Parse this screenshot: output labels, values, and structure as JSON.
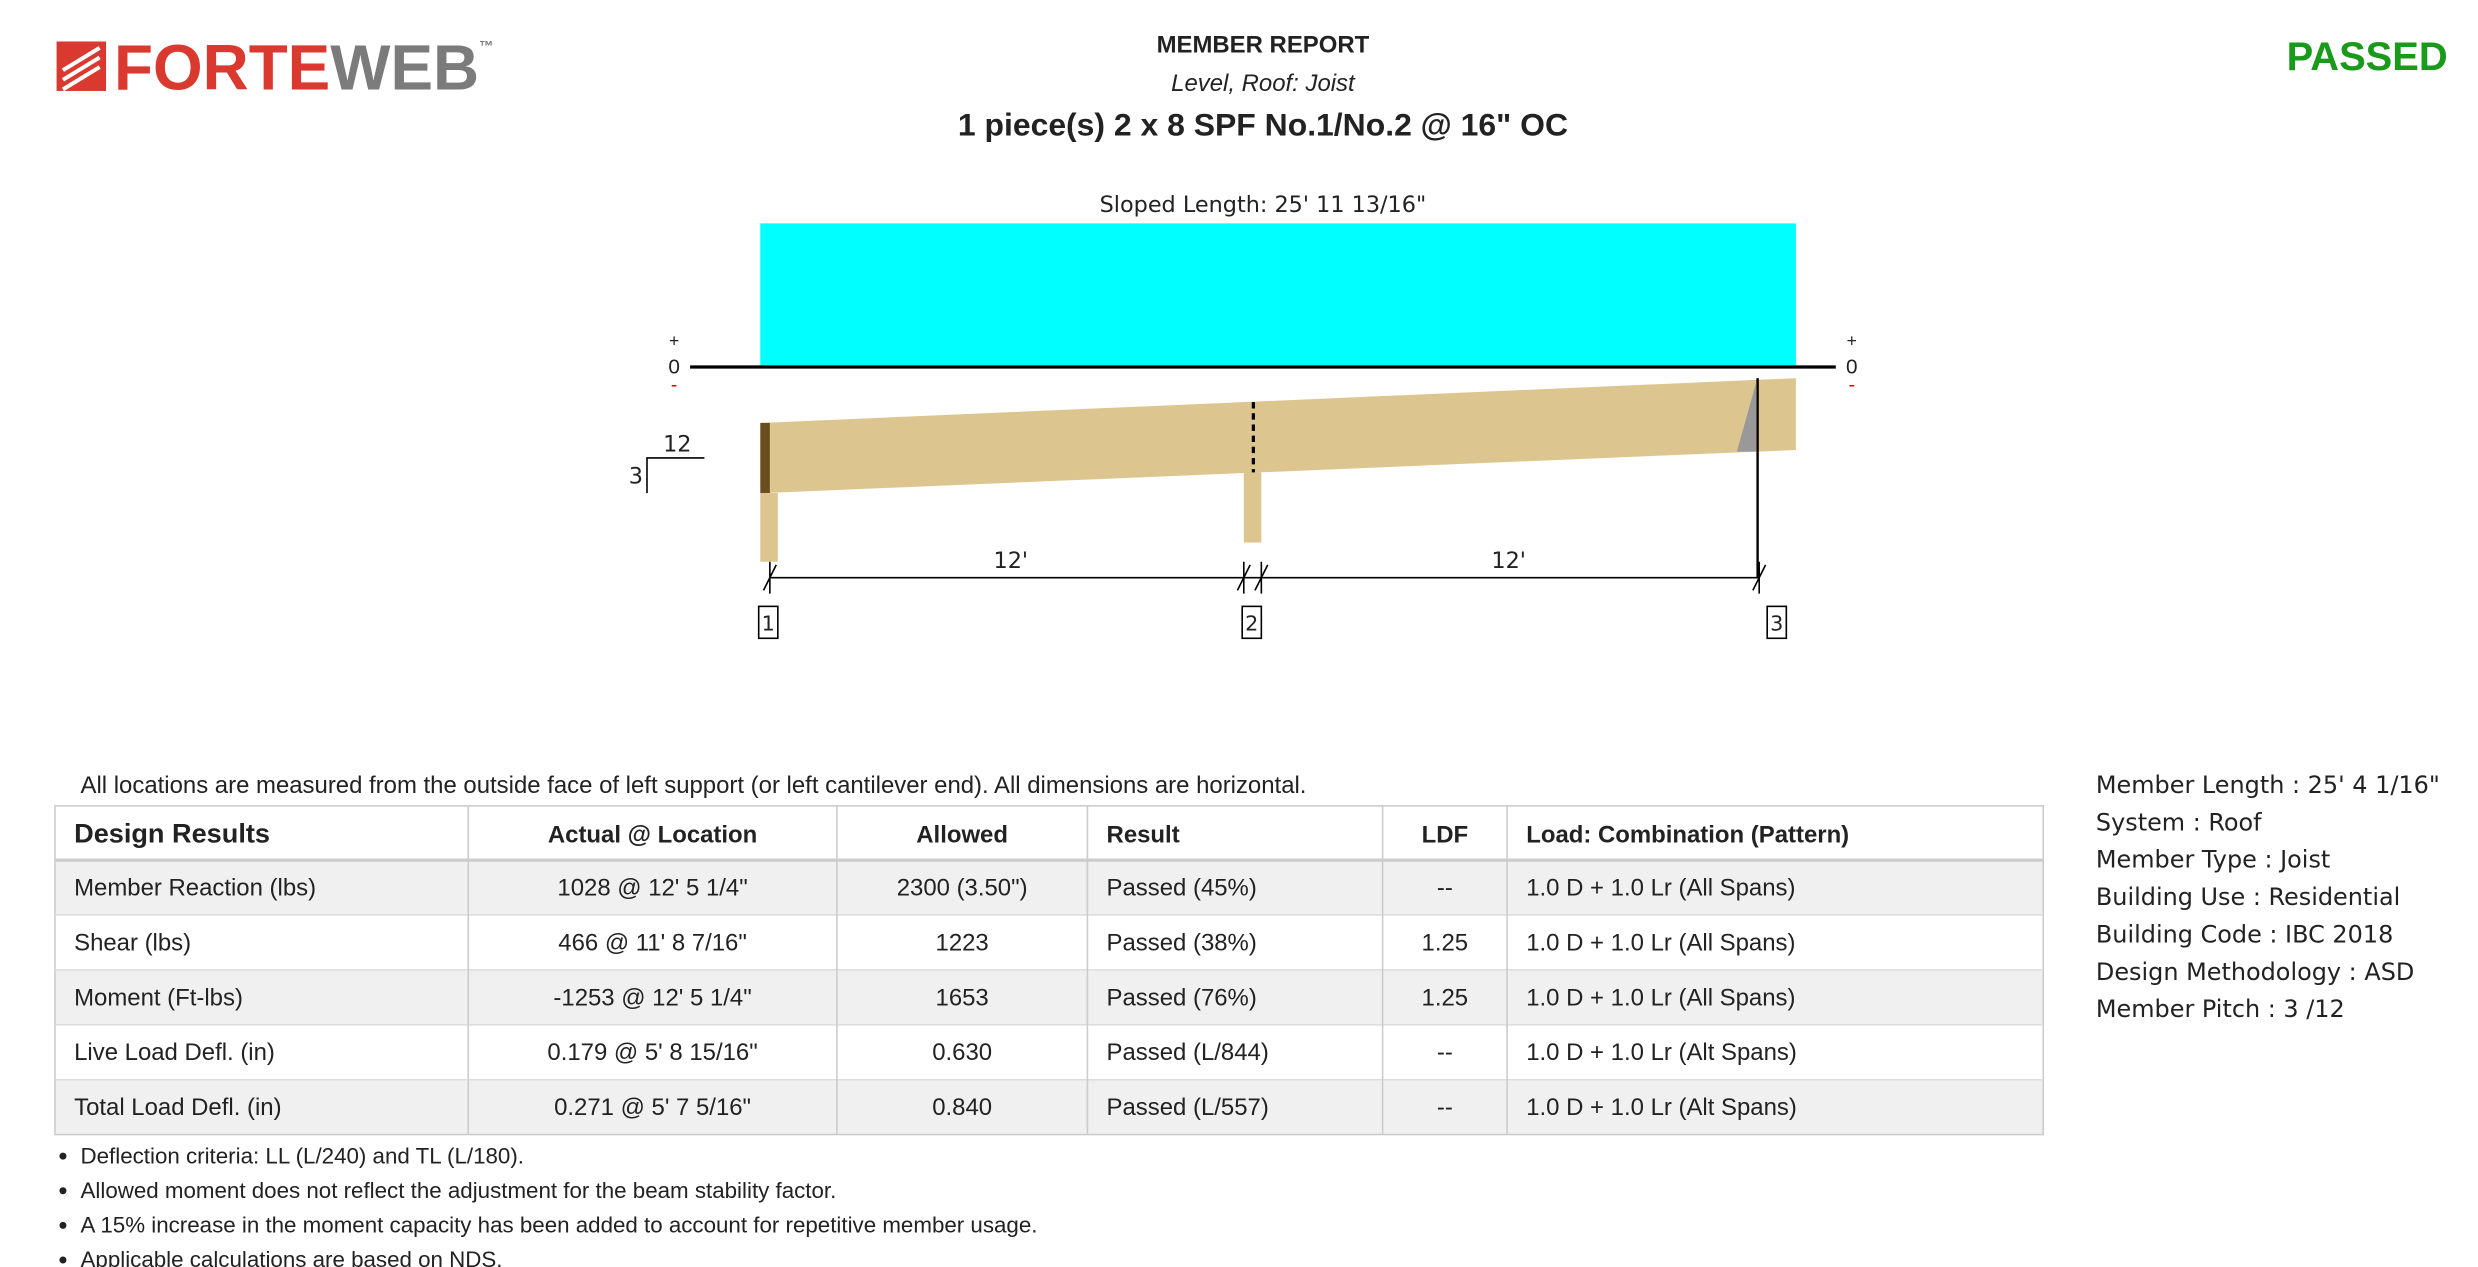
{
  "header": {
    "logo": {
      "forte": "FORTE",
      "web": "WEB",
      "tm": "™"
    },
    "report_label": "MEMBER REPORT",
    "subtitle": "Level, Roof: Joist",
    "title": "1 piece(s) 2 x 8 SPF No.1/No.2 @ 16\" OC",
    "status": "PASSED"
  },
  "diagram": {
    "sloped_length": "Sloped Length: 25' 11 13/16\"",
    "plus": "+",
    "zero": "0",
    "minus": "-",
    "slope_run": "12",
    "slope_rise": "3",
    "spans": [
      "12'",
      "12'"
    ],
    "supports": [
      "1",
      "2",
      "3"
    ]
  },
  "note": "All locations are measured from the outside face of left support (or left cantilever end). All dimensions are horizontal.",
  "table": {
    "headers": [
      "Design Results",
      "Actual @ Location",
      "Allowed",
      "Result",
      "LDF",
      "Load: Combination (Pattern)"
    ],
    "rows": [
      [
        "Member Reaction (lbs)",
        "1028 @ 12' 5 1/4\"",
        "2300 (3.50\")",
        "Passed (45%)",
        "--",
        "1.0 D + 1.0 Lr (All Spans)"
      ],
      [
        "Shear (lbs)",
        "466 @ 11' 8 7/16\"",
        "1223",
        "Passed (38%)",
        "1.25",
        "1.0 D + 1.0 Lr (All Spans)"
      ],
      [
        "Moment (Ft-lbs)",
        "-1253 @ 12' 5 1/4\"",
        "1653",
        "Passed (76%)",
        "1.25",
        "1.0 D + 1.0 Lr (All Spans)"
      ],
      [
        "Live Load Defl. (in)",
        "0.179 @ 5' 8 15/16\"",
        "0.630",
        "Passed (L/844)",
        "--",
        "1.0 D + 1.0 Lr (Alt Spans)"
      ],
      [
        "Total Load Defl. (in)",
        "0.271 @ 5' 7 5/16\"",
        "0.840",
        "Passed (L/557)",
        "--",
        "1.0 D + 1.0 Lr (Alt Spans)"
      ]
    ]
  },
  "bullets": [
    "Deflection criteria: LL (L/240) and TL (L/180).",
    "Allowed moment does not reflect the adjustment for the beam stability factor.",
    "A 15% increase in the moment capacity has been added to account for repetitive member usage.",
    "Applicable calculations are based on NDS."
  ],
  "properties": [
    "Member Length : 25' 4 1/16\"",
    "System : Roof",
    "Member Type : Joist",
    "Building Use : Residential",
    "Building Code : IBC 2018",
    "Design Methodology : ASD",
    "Member Pitch : 3 /12"
  ]
}
